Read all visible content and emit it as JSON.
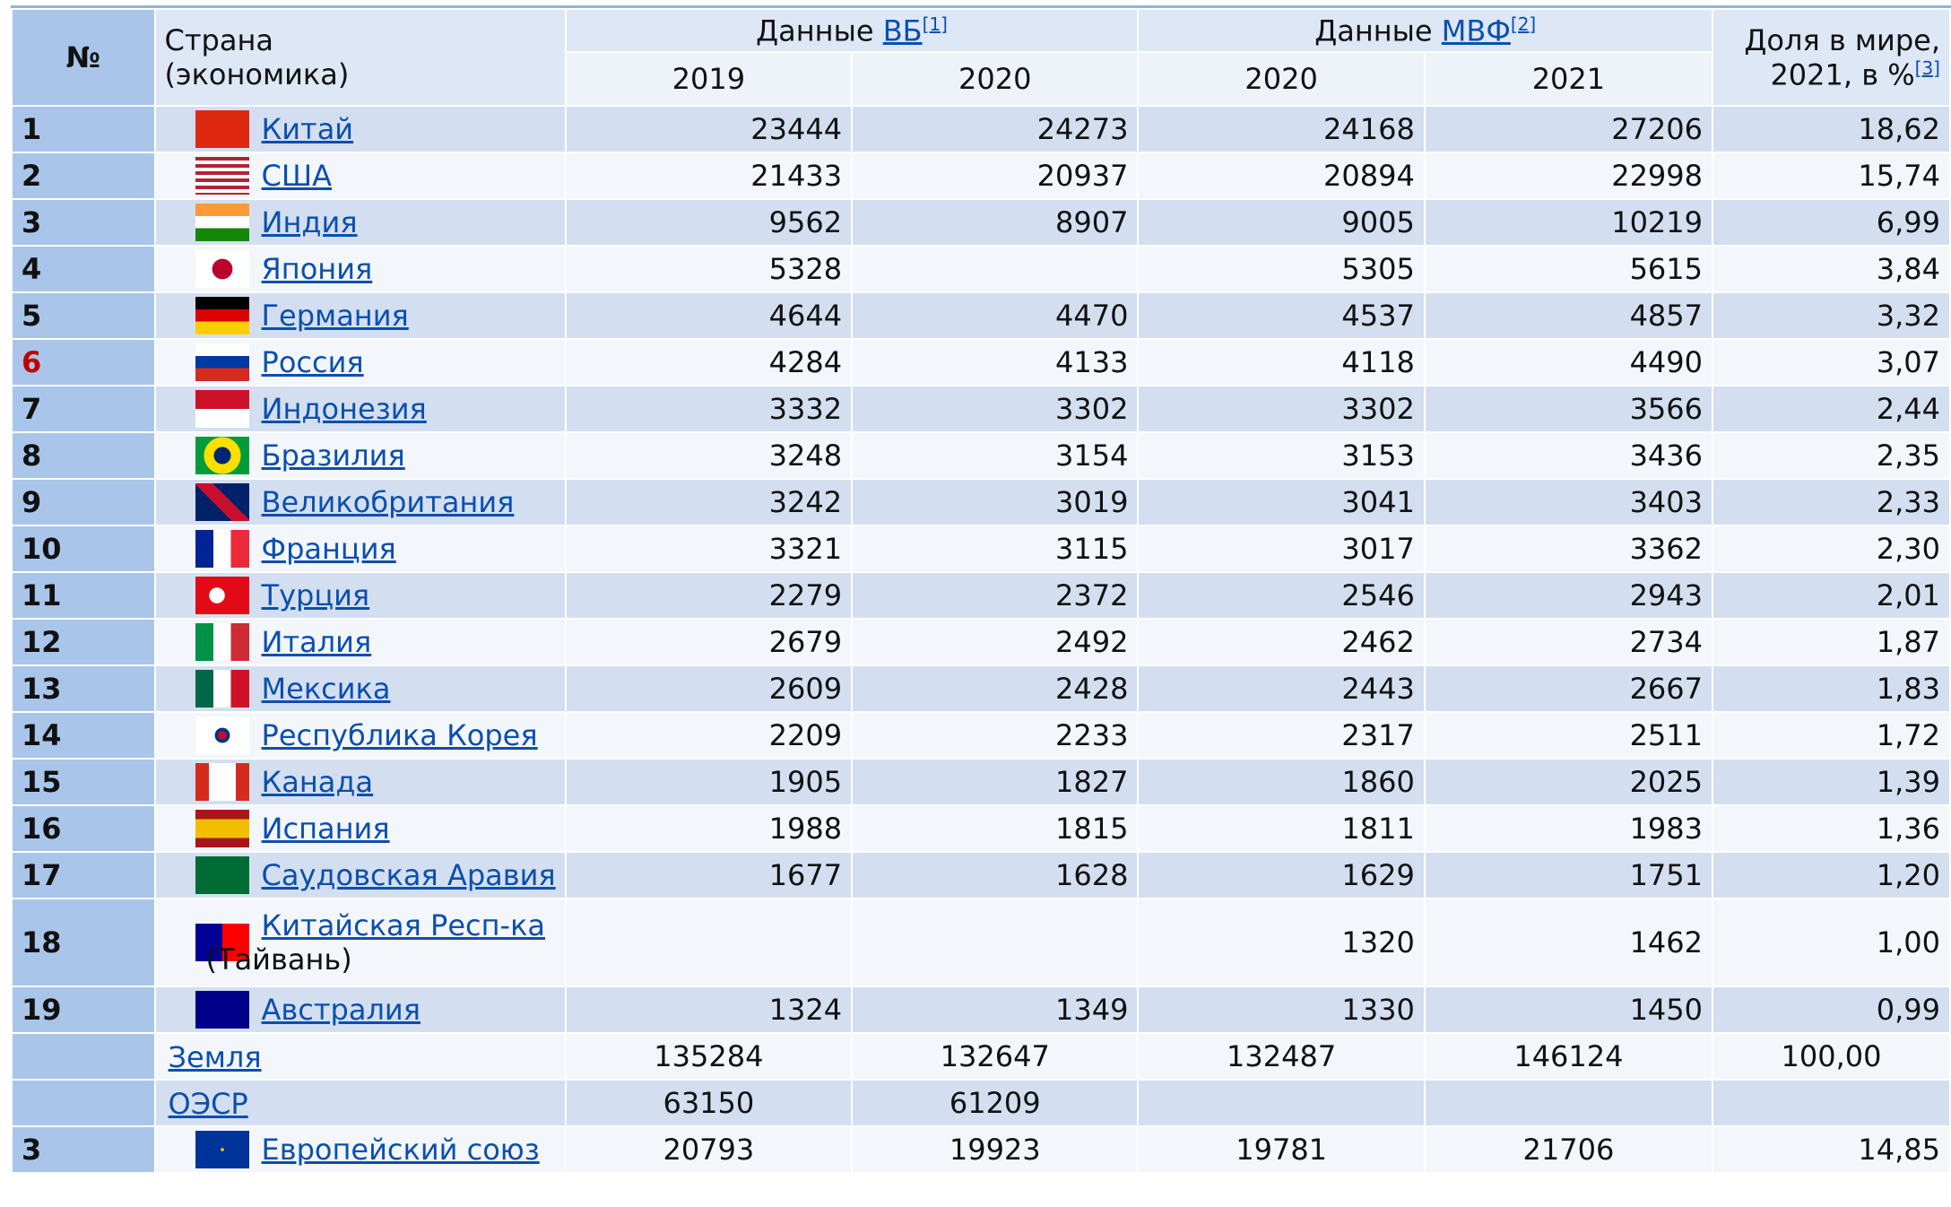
{
  "header": {
    "rank": "№",
    "country": [
      "Страна",
      "(экономика)"
    ],
    "wb": {
      "prefix": "Данные ",
      "link": "ВБ",
      "ref": "[1]"
    },
    "imf": {
      "prefix": "Данные ",
      "link": "МВФ",
      "ref": "[2]"
    },
    "share": {
      "text": [
        "Доля в мире,",
        "2021, в %"
      ],
      "ref": "[3]"
    },
    "years": [
      "2019",
      "2020",
      "2020",
      "2021"
    ]
  },
  "rows": [
    {
      "rank": "1",
      "country": "Китай",
      "values": [
        "23444",
        "24273",
        "24168",
        "27206",
        "18,62"
      ]
    },
    {
      "rank": "2",
      "country": "США",
      "values": [
        "21433",
        "20937",
        "20894",
        "22998",
        "15,74"
      ]
    },
    {
      "rank": "3",
      "country": "Индия",
      "values": [
        "9562",
        "8907",
        "9005",
        "10219",
        "6,99"
      ]
    },
    {
      "rank": "4",
      "country": "Япония",
      "values": [
        "5328",
        null,
        "5305",
        "5615",
        "3,84"
      ]
    },
    {
      "rank": "5",
      "country": "Германия",
      "values": [
        "4644",
        "4470",
        "4537",
        "4857",
        "3,32"
      ]
    },
    {
      "rank": "6",
      "rank_color": "#c00000",
      "country": "Россия",
      "values": [
        "4284",
        "4133",
        "4118",
        "4490",
        "3,07"
      ]
    },
    {
      "rank": "7",
      "country": "Индонезия",
      "values": [
        "3332",
        "3302",
        "3302",
        "3566",
        "2,44"
      ]
    },
    {
      "rank": "8",
      "country": "Бразилия",
      "values": [
        "3248",
        "3154",
        "3153",
        "3436",
        "2,35"
      ]
    },
    {
      "rank": "9",
      "country": "Великобритания",
      "values": [
        "3242",
        "3019",
        "3041",
        "3403",
        "2,33"
      ]
    },
    {
      "rank": "10",
      "country": "Франция",
      "values": [
        "3321",
        "3115",
        "3017",
        "3362",
        "2,30"
      ]
    },
    {
      "rank": "11",
      "country": "Турция",
      "values": [
        "2279",
        "2372",
        "2546",
        "2943",
        "2,01"
      ]
    },
    {
      "rank": "12",
      "country": "Италия",
      "values": [
        "2679",
        "2492",
        "2462",
        "2734",
        "1,87"
      ]
    },
    {
      "rank": "13",
      "country": "Мексика",
      "values": [
        "2609",
        "2428",
        "2443",
        "2667",
        "1,83"
      ]
    },
    {
      "rank": "14",
      "country": "Республика Корея",
      "values": [
        "2209",
        "2233",
        "2317",
        "2511",
        "1,72"
      ]
    },
    {
      "rank": "15",
      "country": "Канада",
      "values": [
        "1905",
        "1827",
        "1860",
        "2025",
        "1,39"
      ]
    },
    {
      "rank": "16",
      "country": "Испания",
      "values": [
        "1988",
        "1815",
        "1811",
        "1983",
        "1,36"
      ]
    },
    {
      "rank": "17",
      "country": "Саудовская Аравия",
      "values": [
        "1677",
        "1628",
        "1629",
        "1751",
        "1,20"
      ]
    },
    {
      "rank": "18",
      "country": "Китайская Респ-ка",
      "note": "(Тайвань)",
      "values": [
        null,
        null,
        "1320",
        "1462",
        "1,00"
      ]
    },
    {
      "rank": "19",
      "country": "Австралия",
      "values": [
        "1324",
        "1349",
        "1330",
        "1450",
        "0,99"
      ]
    }
  ],
  "summary": [
    {
      "rank": null,
      "country": "Земля",
      "values": [
        "135284",
        "132647",
        "132487",
        "146124",
        "100,00"
      ]
    },
    {
      "rank": null,
      "country": "ОЭСР",
      "values": [
        "63150",
        "61209",
        null,
        null,
        null
      ]
    },
    {
      "rank": "3",
      "country": "Европейский союз",
      "values": [
        "20793",
        "19923",
        "19781",
        "21706",
        "14,85"
      ]
    }
  ]
}
